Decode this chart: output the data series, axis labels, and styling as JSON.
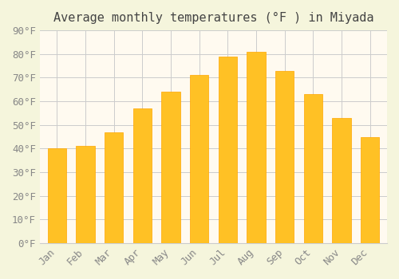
{
  "title": "Average monthly temperatures (°F ) in Miyada",
  "months": [
    "Jan",
    "Feb",
    "Mar",
    "Apr",
    "May",
    "Jun",
    "Jul",
    "Aug",
    "Sep",
    "Oct",
    "Nov",
    "Dec"
  ],
  "values": [
    40,
    41,
    47,
    57,
    64,
    71,
    79,
    81,
    73,
    63,
    53,
    45
  ],
  "bar_color_main": "#FFC125",
  "bar_color_edge": "#FFA500",
  "background_color": "#F5F5DC",
  "plot_bg_color": "#FFFAF0",
  "grid_color": "#CCCCCC",
  "ylim": [
    0,
    90
  ],
  "yticks": [
    0,
    10,
    20,
    30,
    40,
    50,
    60,
    70,
    80,
    90
  ],
  "title_fontsize": 11,
  "tick_fontsize": 9
}
